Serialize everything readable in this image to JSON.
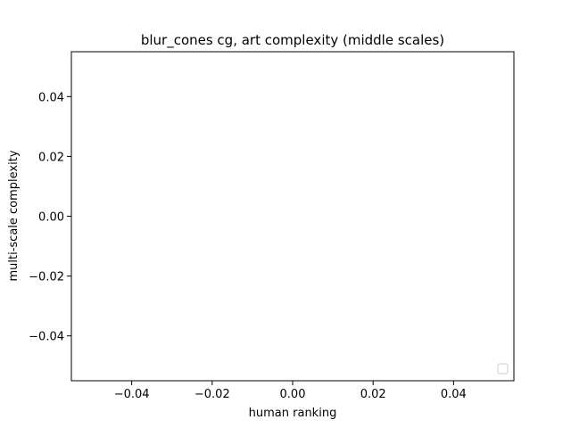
{
  "chart_data": {
    "type": "scatter",
    "title": "blur_cones cg, art complexity (middle scales)",
    "xlabel": "human ranking",
    "ylabel": "multi-scale complexity",
    "xlim": [
      -0.055,
      0.055
    ],
    "ylim": [
      -0.055,
      0.055
    ],
    "xticks": [
      -0.04,
      -0.02,
      0.0,
      0.02,
      0.04
    ],
    "xtick_labels": [
      "−0.04",
      "−0.02",
      "0.00",
      "0.02",
      "0.04"
    ],
    "yticks": [
      -0.04,
      -0.02,
      0.0,
      0.02,
      0.04
    ],
    "ytick_labels": [
      "−0.04",
      "−0.02",
      "0.00",
      "0.02",
      "0.04"
    ],
    "series": [],
    "grid": false,
    "legend": {
      "placement": "bottom-right",
      "entries": []
    }
  }
}
